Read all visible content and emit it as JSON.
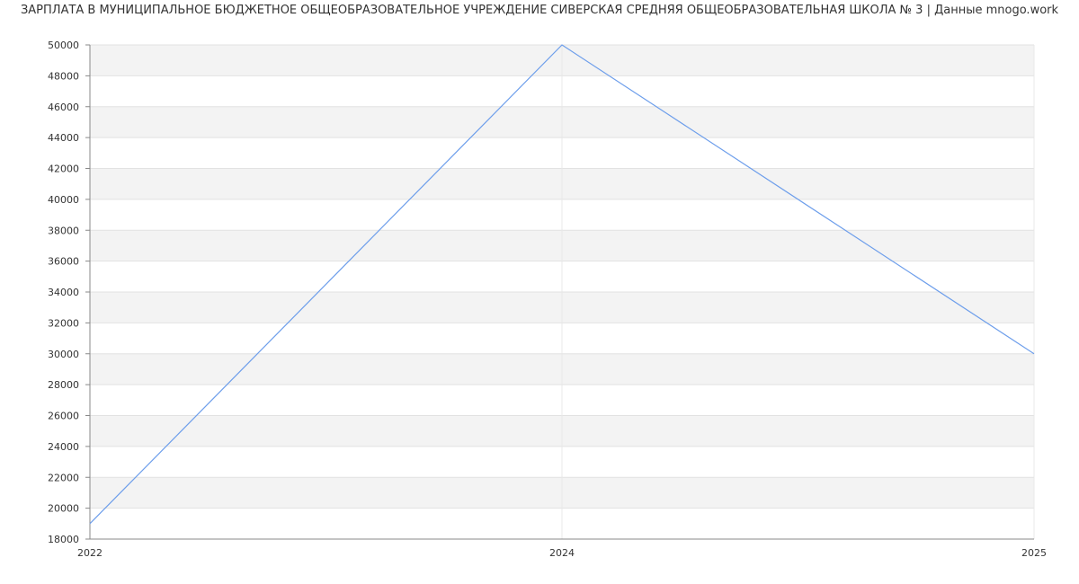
{
  "chart_data": {
    "type": "line",
    "title": "ЗАРПЛАТА В МУНИЦИПАЛЬНОЕ БЮДЖЕТНОЕ ОБЩЕОБРАЗОВАТЕЛЬНОЕ УЧРЕЖДЕНИЕ СИВЕРСКАЯ СРЕДНЯЯ ОБЩЕОБРАЗОВАТЕЛЬНАЯ ШКОЛА № 3 | Данные mnogo.work",
    "categories": [
      "2022",
      "2024",
      "2025"
    ],
    "series": [
      {
        "values": [
          19000,
          50000,
          30000
        ],
        "color": "#6d9eeb"
      }
    ],
    "ylim": [
      18000,
      50000
    ],
    "ytick_step": 2000,
    "grid": true,
    "band_color": "#f3f3f3",
    "xlabel": "",
    "ylabel": ""
  }
}
